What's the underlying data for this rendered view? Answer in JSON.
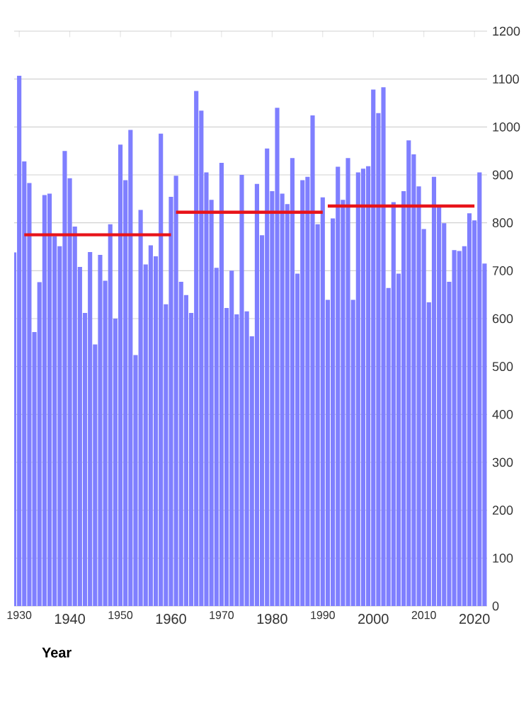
{
  "chart_data": {
    "type": "bar",
    "xlabel": "Year",
    "x": [
      1929,
      1930,
      1931,
      1932,
      1933,
      1934,
      1935,
      1936,
      1937,
      1938,
      1939,
      1940,
      1941,
      1942,
      1943,
      1944,
      1945,
      1946,
      1947,
      1948,
      1949,
      1950,
      1951,
      1952,
      1953,
      1954,
      1955,
      1956,
      1957,
      1958,
      1959,
      1960,
      1961,
      1962,
      1963,
      1964,
      1965,
      1966,
      1967,
      1968,
      1969,
      1970,
      1971,
      1972,
      1973,
      1974,
      1975,
      1976,
      1977,
      1978,
      1979,
      1980,
      1981,
      1982,
      1983,
      1984,
      1985,
      1986,
      1987,
      1988,
      1989,
      1990,
      1991,
      1992,
      1993,
      1994,
      1995,
      1996,
      1997,
      1998,
      1999,
      2000,
      2001,
      2002,
      2003,
      2004,
      2005,
      2006,
      2007,
      2008,
      2009,
      2010,
      2011,
      2012,
      2013,
      2014,
      2015,
      2016,
      2017,
      2018,
      2019,
      2020,
      2021,
      2022
    ],
    "series": [
      {
        "color": "#7f7fff",
        "values": [
          738,
          1107,
          928,
          883,
          572,
          676,
          858,
          861,
          772,
          751,
          950,
          893,
          792,
          708,
          612,
          739,
          546,
          733,
          679,
          797,
          600,
          963,
          889,
          994,
          524,
          827,
          713,
          753,
          730,
          986,
          630,
          854,
          898,
          677,
          649,
          612,
          1075,
          1034,
          905,
          848,
          706,
          925,
          622,
          700,
          609,
          900,
          615,
          563,
          881,
          774,
          955,
          866,
          1040,
          861,
          839,
          935,
          694,
          889,
          896,
          1024,
          797,
          853,
          639,
          809,
          917,
          848,
          935,
          639,
          905,
          913,
          918,
          1078,
          1029,
          1083,
          664,
          843,
          694,
          866,
          972,
          943,
          876,
          787,
          634,
          896,
          833,
          799,
          677,
          743,
          741,
          751,
          820,
          805,
          905,
          715
        ]
      },
      {
        "type": "line",
        "color": "#e8141a",
        "x": [
          1931,
          1960
        ],
        "values": [
          775,
          775
        ]
      },
      {
        "type": "line",
        "color": "#e8141a",
        "x": [
          1961,
          1990
        ],
        "values": [
          822,
          822
        ]
      },
      {
        "type": "line",
        "color": "#e8141a",
        "x": [
          1991,
          2020
        ],
        "values": [
          835,
          835
        ]
      }
    ],
    "xlim": [
      1929,
      2022.5
    ],
    "xticks": [
      1930,
      1940,
      1950,
      1960,
      1970,
      1980,
      1990,
      2000,
      2010,
      2020
    ],
    "ylim": [
      0,
      1200
    ],
    "yticks": [
      0,
      100,
      200,
      300,
      400,
      500,
      600,
      700,
      800,
      900,
      1000,
      1100,
      1200
    ],
    "grid": "y"
  }
}
